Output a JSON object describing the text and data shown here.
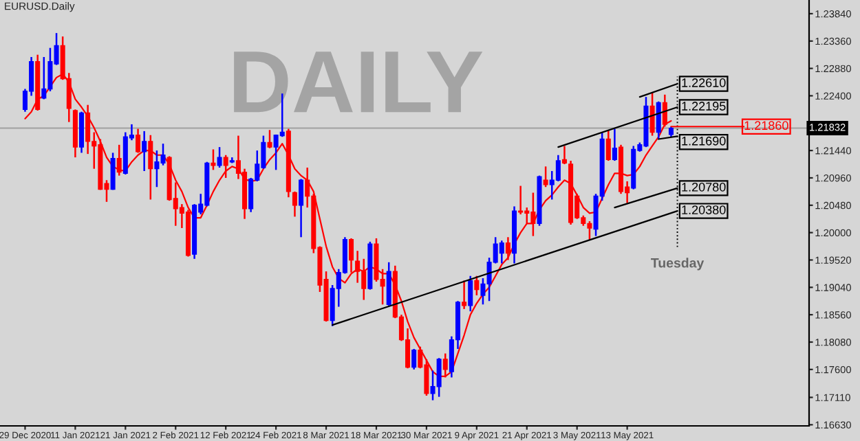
{
  "chart_data": {
    "type": "candlestick",
    "title": "EURUSD.Daily",
    "categories": [
      "29 Dec 2020",
      null,
      null,
      null,
      null,
      null,
      null,
      null,
      "11 Jan 2021",
      null,
      null,
      null,
      null,
      null,
      null,
      null,
      "21 Jan 2021",
      null,
      null,
      null,
      null,
      null,
      null,
      null,
      "2 Feb 2021",
      null,
      null,
      null,
      null,
      null,
      null,
      null,
      "12 Feb 2021",
      null,
      null,
      null,
      null,
      null,
      null,
      null,
      "24 Feb 2021",
      null,
      null,
      null,
      null,
      null,
      null,
      null,
      "8 Mar 2021",
      null,
      null,
      null,
      null,
      null,
      null,
      null,
      "18 Mar 2021",
      null,
      null,
      null,
      null,
      null,
      null,
      null,
      "30 Mar 2021",
      null,
      null,
      null,
      null,
      null,
      null,
      null,
      "9 Apr 2021",
      null,
      null,
      null,
      null,
      null,
      null,
      null,
      "21 Apr 2021",
      null,
      null,
      null,
      null,
      null,
      null,
      null,
      "3 May 2021",
      null,
      null,
      null,
      null,
      null,
      null,
      null,
      "13 May 2021",
      null,
      null,
      null,
      null,
      null,
      null,
      null,
      null
    ],
    "ohlc": [
      [
        1.2216,
        1.2252,
        1.2212,
        1.2248
      ],
      [
        1.2248,
        1.2308,
        1.224,
        1.23
      ],
      [
        1.23,
        1.2312,
        1.2214,
        1.2216
      ],
      [
        1.2236,
        1.2308,
        1.2234,
        1.2252
      ],
      [
        1.2252,
        1.2324,
        1.2248,
        1.23
      ],
      [
        1.2296,
        1.235,
        1.2294,
        1.2328
      ],
      [
        1.2328,
        1.2344,
        1.2268,
        1.227
      ],
      [
        1.227,
        1.228,
        1.2194,
        1.2218
      ],
      [
        1.2214,
        1.2216,
        1.2132,
        1.215
      ],
      [
        1.215,
        1.2212,
        1.214,
        1.221
      ],
      [
        1.221,
        1.2224,
        1.2138,
        1.216
      ],
      [
        1.216,
        1.2176,
        1.2112,
        1.2152
      ],
      [
        1.2154,
        1.2164,
        1.2075,
        1.2076
      ],
      [
        1.2086,
        1.2092,
        1.2054,
        1.2076
      ],
      [
        1.2076,
        1.214,
        1.2075,
        1.213
      ],
      [
        1.213,
        1.2154,
        1.21,
        1.2106
      ],
      [
        1.2104,
        1.2176,
        1.2102,
        1.2168
      ],
      [
        1.2166,
        1.219,
        1.2162,
        1.2171
      ],
      [
        1.2171,
        1.2182,
        1.214,
        1.2142
      ],
      [
        1.2142,
        1.2178,
        1.2108,
        1.216
      ],
      [
        1.216,
        1.2171,
        1.2058,
        1.2112
      ],
      [
        1.2112,
        1.2144,
        1.208,
        1.2124
      ],
      [
        1.2122,
        1.2156,
        1.2118,
        1.2136
      ],
      [
        1.2132,
        1.2134,
        1.2056,
        1.2058
      ],
      [
        1.206,
        1.2088,
        1.2012,
        1.2042
      ],
      [
        1.2044,
        1.205,
        1.2008,
        1.2034
      ],
      [
        1.2036,
        1.204,
        1.1958,
        1.196
      ],
      [
        1.1962,
        1.205,
        1.1954,
        1.2048
      ],
      [
        1.2036,
        1.2068,
        1.2032,
        1.205
      ],
      [
        1.2048,
        1.2124,
        1.2046,
        1.2122
      ],
      [
        1.2122,
        1.2146,
        1.211,
        1.2118
      ],
      [
        1.2118,
        1.215,
        1.2114,
        1.2132
      ],
      [
        1.2132,
        1.2136,
        1.2096,
        1.2118
      ],
      [
        1.2124,
        1.2132,
        1.2122,
        1.2126
      ],
      [
        1.2126,
        1.217,
        1.2094,
        1.2104
      ],
      [
        1.2106,
        1.2112,
        1.2024,
        1.2042
      ],
      [
        1.2042,
        1.2096,
        1.2036,
        1.2094
      ],
      [
        1.2092,
        1.2144,
        1.209,
        1.212
      ],
      [
        1.2114,
        1.217,
        1.2112,
        1.2158
      ],
      [
        1.2158,
        1.218,
        1.2148,
        1.215
      ],
      [
        1.215,
        1.2172,
        1.211,
        1.2171
      ],
      [
        1.217,
        1.2244,
        1.2168,
        1.2176
      ],
      [
        1.2178,
        1.2182,
        1.2062,
        1.2072
      ],
      [
        1.207,
        1.2072,
        1.2028,
        1.2048
      ],
      [
        1.2048,
        1.2094,
        1.1992,
        1.2092
      ],
      [
        1.2092,
        1.2114,
        1.2044,
        1.2064
      ],
      [
        1.2064,
        1.2068,
        1.1964,
        1.1972
      ],
      [
        1.1974,
        1.1976,
        1.1896,
        1.1908
      ],
      [
        1.1918,
        1.1932,
        1.1844,
        1.1846
      ],
      [
        1.1846,
        1.1908,
        1.1836,
        1.1902
      ],
      [
        1.1902,
        1.1936,
        1.187,
        1.193
      ],
      [
        1.193,
        1.1992,
        1.1928,
        1.1988
      ],
      [
        1.1988,
        1.199,
        1.193,
        1.1952
      ],
      [
        1.195,
        1.1968,
        1.1912,
        1.1932
      ],
      [
        1.1932,
        1.1954,
        1.1882,
        1.1902
      ],
      [
        1.1902,
        1.1984,
        1.19,
        1.198
      ],
      [
        1.198,
        1.199,
        1.1914,
        1.1918
      ],
      [
        1.1918,
        1.1936,
        1.1874,
        1.1906
      ],
      [
        1.1874,
        1.1948,
        1.1872,
        1.1932
      ],
      [
        1.1932,
        1.1942,
        1.185,
        1.1852
      ],
      [
        1.1852,
        1.1856,
        1.181,
        1.1812
      ],
      [
        1.1812,
        1.1832,
        1.1762,
        1.1764
      ],
      [
        1.1764,
        1.1796,
        1.176,
        1.1794
      ],
      [
        1.1794,
        1.18,
        1.1762,
        1.1764
      ],
      [
        1.1768,
        1.1778,
        1.1714,
        1.1718
      ],
      [
        1.1718,
        1.1758,
        1.1706,
        1.173
      ],
      [
        1.173,
        1.178,
        1.1712,
        1.1778
      ],
      [
        1.1778,
        1.1788,
        1.1746,
        1.176
      ],
      [
        1.1756,
        1.1818,
        1.1746,
        1.1812
      ],
      [
        1.1812,
        1.188,
        1.1796,
        1.1878
      ],
      [
        1.1878,
        1.1916,
        1.1866,
        1.1872
      ],
      [
        1.1872,
        1.1924,
        1.1862,
        1.1916
      ],
      [
        1.1916,
        1.1924,
        1.189,
        1.19
      ],
      [
        1.189,
        1.192,
        1.1874,
        1.191
      ],
      [
        1.191,
        1.1956,
        1.188,
        1.1948
      ],
      [
        1.1948,
        1.1992,
        1.1946,
        1.198
      ],
      [
        1.1964,
        1.1986,
        1.1946,
        1.1982
      ],
      [
        1.1982,
        1.1992,
        1.1952,
        1.1964
      ],
      [
        1.1964,
        1.2046,
        1.1946,
        1.2038
      ],
      [
        1.2038,
        1.2082,
        1.2032,
        1.2036
      ],
      [
        1.2038,
        1.2044,
        1.2016,
        1.2034
      ],
      [
        1.2036,
        1.207,
        1.1994,
        1.2016
      ],
      [
        1.2016,
        1.21,
        1.2012,
        1.2098
      ],
      [
        1.2092,
        1.2116,
        1.208,
        1.2084
      ],
      [
        1.2084,
        1.2108,
        1.2058,
        1.2092
      ],
      [
        1.2092,
        1.2136,
        1.209,
        1.2126
      ],
      [
        1.2128,
        1.2152,
        1.212,
        1.2122
      ],
      [
        1.212,
        1.2126,
        1.2014,
        1.2018
      ],
      [
        1.2064,
        1.2068,
        1.2024,
        1.2026
      ],
      [
        1.2026,
        1.203,
        1.2012,
        1.2016
      ],
      [
        1.2016,
        1.202,
        1.1988,
        1.2008
      ],
      [
        1.2006,
        1.2068,
        1.1994,
        1.2064
      ],
      [
        1.2064,
        1.2176,
        1.2056,
        1.2164
      ],
      [
        1.2164,
        1.218,
        1.2126,
        1.2128
      ],
      [
        1.2128,
        1.2182,
        1.2126,
        1.2148
      ],
      [
        1.215,
        1.2154,
        1.2068,
        1.2072
      ],
      [
        1.208,
        1.209,
        1.2052,
        1.207
      ],
      [
        1.2078,
        1.2152,
        1.2076,
        1.2146
      ],
      [
        1.2144,
        1.2158,
        1.2142,
        1.2154
      ],
      [
        1.2152,
        1.2238,
        1.215,
        1.2222
      ],
      [
        1.2222,
        1.2246,
        1.217,
        1.2176
      ],
      [
        1.2176,
        1.223,
        1.2164,
        1.2228
      ],
      [
        1.2228,
        1.2242,
        1.2186,
        1.219
      ],
      [
        1.2172,
        1.2186,
        1.2168,
        1.2183
      ],
      null
    ],
    "colors": [
      "#0000ff",
      "#0000ff",
      "#ff0000",
      "#0000ff",
      "#0000ff",
      "#0000ff",
      "#ff0000",
      "#ff0000",
      "#ff0000",
      "#0000ff",
      "#ff0000",
      "#ff0000",
      "#ff0000",
      "#ff0000",
      "#0000ff",
      "#ff0000",
      "#0000ff",
      "#0000ff",
      "#ff0000",
      "#0000ff",
      "#ff0000",
      "#0000ff",
      "#0000ff",
      "#ff0000",
      "#ff0000",
      "#ff0000",
      "#ff0000",
      "#0000ff",
      "#0000ff",
      "#0000ff",
      "#ff0000",
      "#0000ff",
      "#ff0000",
      "#0000ff",
      "#ff0000",
      "#ff0000",
      "#0000ff",
      "#0000ff",
      "#0000ff",
      "#ff0000",
      "#0000ff",
      "#0000ff",
      "#ff0000",
      "#ff0000",
      "#0000ff",
      "#ff0000",
      "#ff0000",
      "#ff0000",
      "#ff0000",
      "#0000ff",
      "#0000ff",
      "#0000ff",
      "#ff0000",
      "#ff0000",
      "#ff0000",
      "#0000ff",
      "#ff0000",
      "#ff0000",
      "#0000ff",
      "#ff0000",
      "#ff0000",
      "#ff0000",
      "#0000ff",
      "#ff0000",
      "#ff0000",
      "#0000ff",
      "#0000ff",
      "#ff0000",
      "#0000ff",
      "#0000ff",
      "#ff0000",
      "#0000ff",
      "#ff0000",
      "#0000ff",
      "#0000ff",
      "#0000ff",
      "#0000ff",
      "#ff0000",
      "#0000ff",
      "#ff0000",
      "#ff0000",
      "#ff0000",
      "#0000ff",
      "#ff0000",
      "#0000ff",
      "#0000ff",
      "#ff0000",
      "#ff0000",
      "#ff0000",
      "#ff0000",
      "#ff0000",
      "#0000ff",
      "#0000ff",
      "#ff0000",
      "#0000ff",
      "#ff0000",
      "#ff0000",
      "#0000ff",
      "#0000ff",
      "#0000ff",
      "#ff0000",
      "#0000ff",
      "#ff0000",
      "#0000ff",
      null
    ],
    "series": [
      {
        "type": "line",
        "color": "#ff0000",
        "values": [
          1.22,
          1.2212,
          1.2234,
          1.224,
          1.2256,
          1.2272,
          1.2278,
          1.2264,
          1.2234,
          1.222,
          1.2204,
          1.2184,
          1.216,
          1.2132,
          1.2116,
          1.211,
          1.2108,
          1.2124,
          1.2136,
          1.2144,
          1.2144,
          1.2136,
          1.2136,
          1.212,
          1.2092,
          1.2072,
          1.2044,
          1.2026,
          1.2026,
          1.2048,
          1.2072,
          1.2092,
          1.2108,
          1.2116,
          1.2112,
          1.2094,
          1.209,
          1.2092,
          1.2112,
          1.2128,
          1.214,
          1.2156,
          1.2136,
          1.2112,
          1.21,
          1.2092,
          1.2072,
          1.2024,
          1.1976,
          1.194,
          1.192,
          1.1912,
          1.1928,
          1.1936,
          1.1932,
          1.194,
          1.1936,
          1.1928,
          1.1928,
          1.1908,
          1.188,
          1.1844,
          1.1816,
          1.1796,
          1.1776,
          1.1756,
          1.1748,
          1.1748,
          1.1756,
          1.1788,
          1.182,
          1.1856,
          1.1876,
          1.1892,
          1.1904,
          1.1924,
          1.1944,
          1.1956,
          1.198,
          1.2,
          1.2016,
          1.2016,
          1.204,
          1.2056,
          1.2066,
          1.208,
          1.2092,
          1.2086,
          1.2066,
          1.2044,
          1.2034,
          1.2036,
          1.206,
          1.2084,
          1.2104,
          1.2104,
          1.21,
          1.2102,
          1.2116,
          1.2136,
          1.2152,
          1.2168,
          1.219,
          1.2196,
          null
        ]
      },
      {
        "type": "line",
        "color": "#000000",
        "name": "1.20380",
        "values": [
          null,
          null,
          null,
          null,
          null,
          null,
          null,
          null,
          null,
          null,
          null,
          null,
          null,
          null,
          null,
          null,
          null,
          null,
          null,
          null,
          null,
          null,
          null,
          null,
          null,
          null,
          null,
          null,
          null,
          null,
          null,
          null,
          null,
          null,
          null,
          null,
          null,
          null,
          null,
          null,
          null,
          null,
          null,
          null,
          null,
          null,
          null,
          null,
          null,
          1.1838,
          null,
          null,
          null,
          null,
          null,
          null,
          null,
          null,
          null,
          null,
          null,
          null,
          null,
          null,
          null,
          null,
          null,
          null,
          null,
          null,
          null,
          null,
          null,
          null,
          null,
          null,
          null,
          null,
          null,
          null,
          null,
          null,
          null,
          null,
          null,
          null,
          null,
          null,
          null,
          null,
          null,
          null,
          null,
          null,
          null,
          null,
          null,
          null,
          null,
          null,
          null,
          null,
          null,
          null,
          1.2038
        ]
      },
      {
        "type": "line",
        "color": "#000000",
        "name": "1.20780",
        "values": [
          null,
          null,
          null,
          null,
          null,
          null,
          null,
          null,
          null,
          null,
          null,
          null,
          null,
          null,
          null,
          null,
          null,
          null,
          null,
          null,
          null,
          null,
          null,
          null,
          null,
          null,
          null,
          null,
          null,
          null,
          null,
          null,
          null,
          null,
          null,
          null,
          null,
          null,
          null,
          null,
          null,
          null,
          null,
          null,
          null,
          null,
          null,
          null,
          null,
          null,
          null,
          null,
          null,
          null,
          null,
          null,
          null,
          null,
          null,
          null,
          null,
          null,
          null,
          null,
          null,
          null,
          null,
          null,
          null,
          null,
          null,
          null,
          null,
          null,
          null,
          null,
          null,
          null,
          null,
          null,
          null,
          null,
          null,
          null,
          null,
          null,
          null,
          null,
          null,
          null,
          null,
          null,
          null,
          null,
          1.2044,
          null,
          null,
          null,
          null,
          null,
          null,
          null,
          null,
          null,
          1.2078
        ]
      },
      {
        "type": "line",
        "color": "#000000",
        "name": "1.22195",
        "values": [
          null,
          null,
          null,
          null,
          null,
          null,
          null,
          null,
          null,
          null,
          null,
          null,
          null,
          null,
          null,
          null,
          null,
          null,
          null,
          null,
          null,
          null,
          null,
          null,
          null,
          null,
          null,
          null,
          null,
          null,
          null,
          null,
          null,
          null,
          null,
          null,
          null,
          null,
          null,
          null,
          null,
          null,
          null,
          null,
          null,
          null,
          null,
          null,
          null,
          null,
          null,
          null,
          null,
          null,
          null,
          null,
          null,
          null,
          null,
          null,
          null,
          null,
          null,
          null,
          null,
          null,
          null,
          null,
          null,
          null,
          null,
          null,
          null,
          null,
          null,
          null,
          null,
          null,
          null,
          null,
          null,
          null,
          null,
          null,
          null,
          1.215,
          null,
          null,
          null,
          null,
          null,
          null,
          null,
          null,
          null,
          null,
          null,
          null,
          null,
          null,
          null,
          null,
          null,
          null,
          1.222
        ]
      },
      {
        "type": "line",
        "color": "#000000",
        "name": "1.22610",
        "values": [
          null,
          null,
          null,
          null,
          null,
          null,
          null,
          null,
          null,
          null,
          null,
          null,
          null,
          null,
          null,
          null,
          null,
          null,
          null,
          null,
          null,
          null,
          null,
          null,
          null,
          null,
          null,
          null,
          null,
          null,
          null,
          null,
          null,
          null,
          null,
          null,
          null,
          null,
          null,
          null,
          null,
          null,
          null,
          null,
          null,
          null,
          null,
          null,
          null,
          null,
          null,
          null,
          null,
          null,
          null,
          null,
          null,
          null,
          null,
          null,
          null,
          null,
          null,
          null,
          null,
          null,
          null,
          null,
          null,
          null,
          null,
          null,
          null,
          null,
          null,
          null,
          null,
          null,
          null,
          null,
          null,
          null,
          null,
          null,
          null,
          null,
          null,
          null,
          null,
          null,
          null,
          null,
          null,
          null,
          null,
          null,
          null,
          null,
          1.2238,
          null,
          null,
          null,
          null,
          null,
          1.2261
        ]
      },
      {
        "type": "line",
        "color": "#000000",
        "name": "1.21690",
        "values": [
          null,
          null,
          null,
          null,
          null,
          null,
          null,
          null,
          null,
          null,
          null,
          null,
          null,
          null,
          null,
          null,
          null,
          null,
          null,
          null,
          null,
          null,
          null,
          null,
          null,
          null,
          null,
          null,
          null,
          null,
          null,
          null,
          null,
          null,
          null,
          null,
          null,
          null,
          null,
          null,
          null,
          null,
          null,
          null,
          null,
          null,
          null,
          null,
          null,
          null,
          null,
          null,
          null,
          null,
          null,
          null,
          null,
          null,
          null,
          null,
          null,
          null,
          null,
          null,
          null,
          null,
          null,
          null,
          null,
          null,
          null,
          null,
          null,
          null,
          null,
          null,
          null,
          null,
          null,
          null,
          null,
          null,
          null,
          null,
          null,
          null,
          null,
          null,
          null,
          null,
          null,
          null,
          null,
          null,
          null,
          null,
          null,
          null,
          null,
          null,
          null,
          1.2164,
          null,
          null,
          1.2169
        ]
      },
      {
        "type": "line",
        "color": "#ff0000",
        "name": "1.21860",
        "values": [
          null,
          null,
          null,
          null,
          null,
          null,
          null,
          null,
          null,
          null,
          null,
          null,
          null,
          null,
          null,
          null,
          null,
          null,
          null,
          null,
          null,
          null,
          null,
          null,
          null,
          null,
          null,
          null,
          null,
          null,
          null,
          null,
          null,
          null,
          null,
          null,
          null,
          null,
          null,
          null,
          null,
          null,
          null,
          null,
          null,
          null,
          null,
          null,
          null,
          null,
          null,
          null,
          null,
          null,
          null,
          null,
          null,
          null,
          null,
          null,
          null,
          null,
          null,
          null,
          null,
          null,
          null,
          null,
          null,
          null,
          null,
          null,
          null,
          null,
          null,
          null,
          null,
          null,
          null,
          null,
          null,
          null,
          null,
          null,
          null,
          null,
          null,
          null,
          null,
          null,
          null,
          null,
          null,
          null,
          null,
          null,
          null,
          null,
          null,
          null,
          null,
          null,
          null,
          1.2186,
          1.2186
        ]
      }
    ],
    "ref_lines": [
      {
        "axis": "y",
        "value": 1.21832,
        "label": "1.21832",
        "color": "#a0a0a0"
      }
    ],
    "annotations": [
      "DAILY",
      "Tuesday"
    ],
    "legend": "right",
    "ylim": [
      1.1661,
      1.2408
    ],
    "yticks": [
      {
        "value": 1.2384,
        "label": "1.23840"
      },
      {
        "value": 1.2336,
        "label": "1.23360"
      },
      {
        "value": 1.2288,
        "label": "1.22880"
      },
      {
        "value": 1.224,
        "label": "1.22400"
      },
      {
        "value": 1.2144,
        "label": "1.21440"
      },
      {
        "value": 1.2096,
        "label": "1.20960"
      },
      {
        "value": 1.2048,
        "label": "1.20480"
      },
      {
        "value": 1.2,
        "label": "1.20000"
      },
      {
        "value": 1.1952,
        "label": "1.19520"
      },
      {
        "value": 1.1904,
        "label": "1.19040"
      },
      {
        "value": 1.1856,
        "label": "1.18560"
      },
      {
        "value": 1.1808,
        "label": "1.18080"
      },
      {
        "value": 1.176,
        "label": "1.17600"
      },
      {
        "value": 1.1711,
        "label": "1.17110"
      },
      {
        "value": 1.1663,
        "label": "1.16630"
      }
    ]
  }
}
